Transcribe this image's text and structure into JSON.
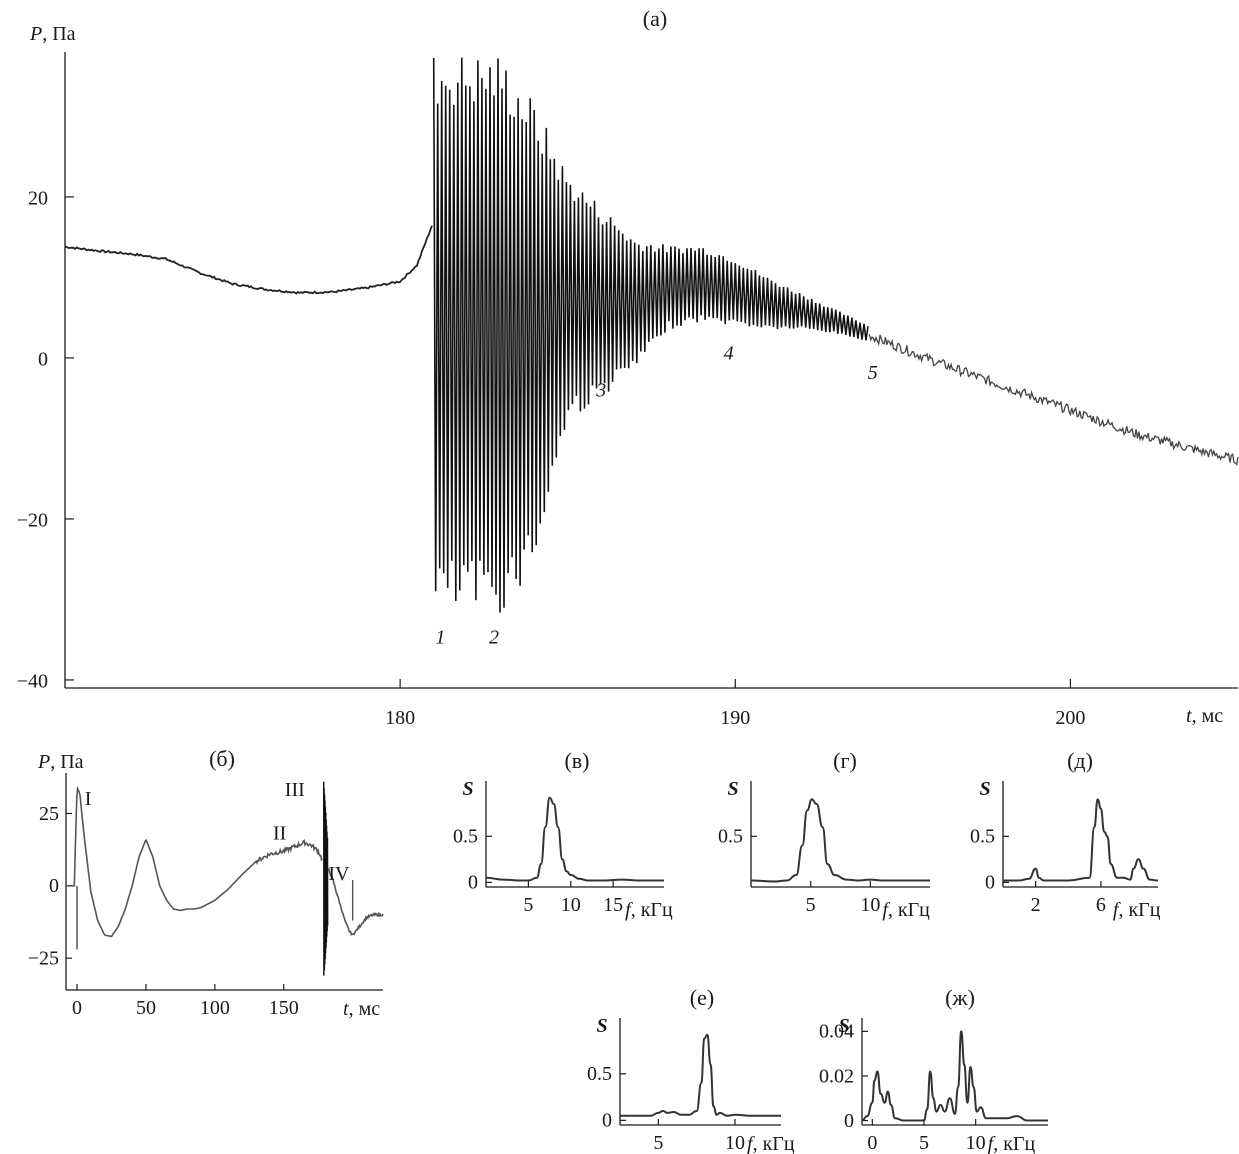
{
  "chart_data": [
    {
      "id": "a",
      "type": "line",
      "title": "(а)",
      "ylabel_var": "P",
      "ylabel_unit": ", Па",
      "xlabel_var": "t",
      "xlabel_unit": ", мс",
      "xlim": [
        170,
        205
      ],
      "ylim": [
        -41,
        38
      ],
      "xticks": [
        180,
        190,
        200
      ],
      "yticks": [
        20,
        0,
        -20,
        -40
      ],
      "ytick_labels": [
        "20",
        "0",
        "−20",
        "−40"
      ],
      "annotations": [
        {
          "text": "1",
          "x": 181.2,
          "y": -35.5
        },
        {
          "text": "2",
          "x": 182.8,
          "y": -35.5
        },
        {
          "text": "3",
          "x": 186.0,
          "y": -4.8
        },
        {
          "text": "4",
          "x": 189.8,
          "y": -0.2
        },
        {
          "text": "5",
          "x": 194.1,
          "y": -2.6
        }
      ],
      "baseline_before_burst": {
        "t": [
          170,
          171,
          172,
          173,
          174,
          175,
          176,
          177,
          178,
          179,
          180,
          180.5,
          181
        ],
        "P": [
          13.8,
          13.3,
          12.9,
          12.3,
          10.6,
          9.2,
          8.5,
          8.1,
          8.2,
          8.7,
          9.5,
          11.5,
          17
        ]
      },
      "burst_envelope": {
        "t": [
          181.0,
          182.0,
          183.0,
          184.0,
          185.0,
          186.0,
          187.0,
          188.0,
          189.0,
          190.0,
          191.0,
          192.0,
          193.0,
          194.0
        ],
        "upper": [
          38,
          38,
          38,
          32,
          23,
          19,
          15,
          14,
          14,
          12.5,
          10,
          8,
          6,
          4
        ],
        "lower": [
          -32,
          -32,
          -32,
          -26,
          -8,
          -5,
          -1.5,
          3.5,
          4.5,
          4,
          3.5,
          3.5,
          3,
          2
        ]
      },
      "tail": {
        "t": [
          194,
          196,
          198,
          200,
          202,
          204,
          205
        ],
        "P": [
          2.8,
          -0.5,
          -3.5,
          -6.5,
          -9.5,
          -11.7,
          -12.7
        ]
      }
    },
    {
      "id": "b",
      "type": "line",
      "title": "(б)",
      "ylabel_var": "P",
      "ylabel_unit": ", Па",
      "xlabel_var": "t",
      "xlabel_unit": ", мс",
      "xlim": [
        -8,
        222
      ],
      "ylim": [
        -36,
        39
      ],
      "xticks": [
        0,
        50,
        100,
        150
      ],
      "yticks": [
        25,
        0,
        -25
      ],
      "ytick_labels": [
        "25",
        "0",
        "−25"
      ],
      "annotations": [
        {
          "text": "I",
          "x": 8,
          "y": 28
        },
        {
          "text": "II",
          "x": 147,
          "y": 16
        },
        {
          "text": "III",
          "x": 158,
          "y": 31
        },
        {
          "text": "IV",
          "x": 190,
          "y": 2
        }
      ],
      "t": [
        -8,
        -2,
        0,
        2,
        5,
        10,
        15,
        20,
        25,
        30,
        35,
        40,
        45,
        50,
        55,
        60,
        65,
        70,
        75,
        80,
        85,
        90,
        100,
        110,
        120,
        130,
        140,
        150,
        155,
        160,
        165,
        170,
        175,
        178
      ],
      "P": [
        0,
        0,
        34,
        32,
        18,
        -2,
        -12,
        -17,
        -17.5,
        -14,
        -8,
        0,
        10,
        16,
        10,
        0,
        -5,
        -8,
        -8.5,
        -8,
        -8,
        -7.5,
        -5,
        -1,
        4,
        8.5,
        11,
        12,
        13,
        14,
        15,
        14,
        12,
        9
      ],
      "burst": {
        "t": [
          179,
          182
        ],
        "upper": 36,
        "lower": -32
      },
      "after": {
        "t": [
          182,
          185,
          190,
          195,
          198,
          200,
          205,
          210,
          215,
          222
        ],
        "P": [
          6,
          3,
          -5,
          -13,
          -16,
          -17,
          -14,
          -11,
          -10,
          -10
        ]
      }
    },
    {
      "id": "v",
      "type": "line",
      "title": "(в)",
      "ylabel": "S",
      "xlabel_var": "f",
      "xlabel_unit": ", кГц",
      "xlim": [
        0,
        21
      ],
      "ylim": [
        -0.05,
        1.1
      ],
      "xticks": [
        5,
        10,
        15
      ],
      "yticks": [
        0.5,
        0
      ],
      "ytick_labels": [
        "0.5",
        "0"
      ],
      "x": [
        0,
        2,
        4,
        5,
        6,
        6.5,
        7,
        7.5,
        8,
        8.5,
        9,
        9.5,
        10,
        11,
        12,
        14,
        16,
        18,
        20,
        21
      ],
      "y": [
        0.05,
        0.03,
        0.02,
        0.02,
        0.05,
        0.2,
        0.6,
        0.92,
        0.85,
        0.6,
        0.25,
        0.12,
        0.08,
        0.04,
        0.02,
        0.02,
        0.03,
        0.02,
        0.02,
        0.02
      ]
    },
    {
      "id": "g",
      "type": "line",
      "title": "(г)",
      "ylabel": "S",
      "xlabel_var": "f",
      "xlabel_unit": ", кГц",
      "xlim": [
        0,
        15
      ],
      "ylim": [
        -0.05,
        1.1
      ],
      "xticks": [
        5,
        10
      ],
      "yticks": [
        0.5
      ],
      "ytick_labels": [
        "0.5"
      ],
      "x": [
        0,
        2,
        3,
        3.8,
        4.3,
        4.7,
        5.1,
        5.5,
        6,
        6.4,
        7,
        8,
        9,
        10,
        11,
        12,
        13,
        15
      ],
      "y": [
        0.02,
        0.01,
        0.02,
        0.08,
        0.4,
        0.78,
        0.9,
        0.85,
        0.6,
        0.2,
        0.08,
        0.03,
        0.02,
        0.03,
        0.02,
        0.02,
        0.02,
        0.02
      ]
    },
    {
      "id": "d",
      "type": "line",
      "title": "(д)",
      "ylabel": "S",
      "xlabel_var": "f",
      "xlabel_unit": ", кГц",
      "xlim": [
        0,
        9.5
      ],
      "ylim": [
        -0.05,
        1.1
      ],
      "xticks": [
        2,
        6
      ],
      "yticks": [
        0.5,
        0
      ],
      "ytick_labels": [
        "0.5",
        "0"
      ],
      "x": [
        0,
        1,
        1.6,
        2,
        2.2,
        2.5,
        3,
        4,
        5.3,
        5.6,
        5.8,
        6,
        6.2,
        6.4,
        6.6,
        7,
        7.4,
        7.8,
        8,
        8.3,
        8.6,
        9,
        9.5
      ],
      "y": [
        0.02,
        0.02,
        0.04,
        0.15,
        0.05,
        0.02,
        0.02,
        0.02,
        0.05,
        0.6,
        0.9,
        0.8,
        0.55,
        0.5,
        0.2,
        0.05,
        0.05,
        0.03,
        0.15,
        0.25,
        0.15,
        0.03,
        0.02
      ]
    },
    {
      "id": "e",
      "type": "line",
      "title": "(е)",
      "ylabel": "S",
      "xlabel_var": "f",
      "xlabel_unit": ", кГц",
      "xlim": [
        2.5,
        13
      ],
      "ylim": [
        -0.05,
        1.1
      ],
      "xticks": [
        5,
        10
      ],
      "yticks": [
        0.5,
        0
      ],
      "ytick_labels": [
        "0.5",
        "0"
      ],
      "x": [
        2.5,
        3.5,
        4.5,
        5,
        5.3,
        5.6,
        6,
        6.5,
        7,
        7.5,
        7.8,
        8,
        8.2,
        8.4,
        8.6,
        8.8,
        9,
        9.5,
        10,
        11,
        12,
        13
      ],
      "y": [
        0.05,
        0.05,
        0.05,
        0.08,
        0.1,
        0.08,
        0.09,
        0.06,
        0.06,
        0.1,
        0.4,
        0.88,
        0.92,
        0.6,
        0.15,
        0.06,
        0.08,
        0.05,
        0.06,
        0.05,
        0.05,
        0.05
      ]
    },
    {
      "id": "zh",
      "type": "line",
      "title": "(ж)",
      "ylabel": "S",
      "xlabel_var": "f",
      "xlabel_unit": ", кГц",
      "xlim": [
        -1,
        17
      ],
      "ylim": [
        -0.002,
        0.046
      ],
      "xticks": [
        0,
        5,
        10
      ],
      "yticks": [
        0.04,
        0.02,
        0
      ],
      "ytick_labels": [
        "0.04",
        "0.02",
        "0"
      ],
      "x": [
        -1,
        -0.5,
        0,
        0.2,
        0.5,
        0.8,
        1.2,
        1.5,
        1.8,
        2.2,
        3,
        4,
        5,
        5.3,
        5.6,
        5.9,
        6.2,
        6.6,
        7,
        7.5,
        8,
        8.3,
        8.6,
        8.9,
        9.2,
        9.5,
        9.8,
        10.1,
        10.5,
        11,
        12,
        13,
        14,
        15,
        16,
        17
      ],
      "y": [
        0,
        0.002,
        0.008,
        0.018,
        0.022,
        0.012,
        0.008,
        0.013,
        0.007,
        0.001,
        0,
        0,
        0,
        0.005,
        0.022,
        0.01,
        0.004,
        0.007,
        0.004,
        0.01,
        0.003,
        0.015,
        0.04,
        0.025,
        0.008,
        0.024,
        0.015,
        0.004,
        0.006,
        0.001,
        0.001,
        0.001,
        0.002,
        0,
        0,
        0
      ]
    }
  ]
}
